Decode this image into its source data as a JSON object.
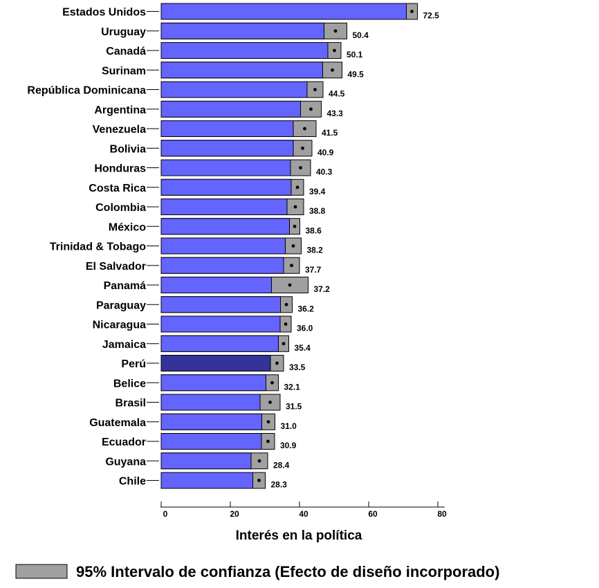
{
  "chart_data": {
    "type": "bar",
    "orientation": "horizontal",
    "categories": [
      "Estados Unidos",
      "Uruguay",
      "Canadá",
      "Surinam",
      "República Dominicana",
      "Argentina",
      "Venezuela",
      "Bolivia",
      "Honduras",
      "Costa Rica",
      "Colombia",
      "México",
      "Trinidad & Tobago",
      "El Salvador",
      "Panamá",
      "Paraguay",
      "Nicaragua",
      "Jamaica",
      "Perú",
      "Belice",
      "Brasil",
      "Guatemala",
      "Ecuador",
      "Guyana",
      "Chile"
    ],
    "values": [
      72.5,
      50.4,
      50.1,
      49.5,
      44.5,
      43.3,
      41.5,
      40.9,
      40.3,
      39.4,
      38.8,
      38.6,
      38.2,
      37.7,
      37.2,
      36.2,
      36.0,
      35.4,
      33.5,
      32.1,
      31.5,
      31.0,
      30.9,
      28.4,
      28.3
    ],
    "value_labels": [
      "72.5",
      "50.4",
      "50.1",
      "49.5",
      "44.5",
      "43.3",
      "41.5",
      "40.9",
      "40.3",
      "39.4",
      "38.8",
      "38.6",
      "38.2",
      "37.7",
      "37.2",
      "36.2",
      "36.0",
      "35.4",
      "33.5",
      "32.1",
      "31.5",
      "31.0",
      "30.9",
      "28.4",
      "28.3"
    ],
    "ci_low": [
      70.9,
      47.1,
      48.2,
      46.7,
      42.2,
      40.3,
      38.2,
      38.2,
      37.4,
      37.6,
      36.4,
      37.1,
      35.9,
      35.4,
      31.9,
      34.5,
      34.4,
      33.9,
      31.6,
      30.3,
      28.6,
      29.1,
      29.0,
      26.0,
      26.5
    ],
    "ci_high": [
      74.1,
      53.7,
      52.0,
      52.3,
      46.8,
      46.3,
      44.8,
      43.6,
      43.2,
      41.2,
      41.2,
      40.1,
      40.5,
      40.0,
      42.5,
      37.9,
      37.6,
      36.9,
      35.4,
      33.9,
      34.4,
      32.9,
      32.8,
      30.8,
      30.1
    ],
    "highlight": "Perú",
    "xlabel": "Interés en la política",
    "ylabel": "",
    "xlim": [
      0,
      80
    ],
    "xticks": [
      "0",
      "20",
      "40",
      "60",
      "80"
    ],
    "legend": {
      "label": "95% Intervalo de confianza (Efecto de diseño incorporado)",
      "placement": "bottom"
    },
    "grid": false,
    "colors": {
      "bar": "#6464ff",
      "highlight_bar": "#333399",
      "ci": "#a0a0a0",
      "stroke": "#000000"
    }
  }
}
